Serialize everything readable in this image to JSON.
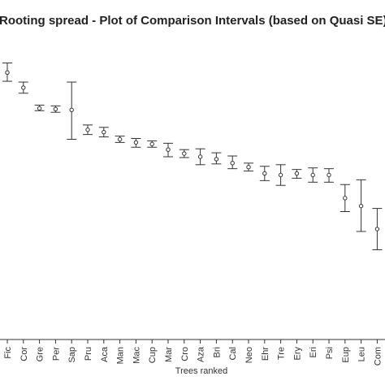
{
  "chart_data": {
    "type": "scatter",
    "title": "Rooting spread - Plot of Comparison Intervals (based on Quasi SE)",
    "xlabel": "Trees ranked",
    "ylabel": "",
    "categories": [
      "Fic",
      "Cor",
      "Gre",
      "Per",
      "Sap",
      "Pru",
      "Aca",
      "Man",
      "Mac",
      "Cup",
      "Mar",
      "Cro",
      "Aza",
      "Bri",
      "Cal",
      "Neo",
      "Ehr",
      "Tre",
      "Ery",
      "Eri",
      "Psi",
      "Eup",
      "Leu",
      "Com"
    ],
    "series": [
      {
        "estimate": [
          88,
          69,
          43,
          42,
          41,
          16,
          13,
          4,
          0,
          -2,
          -9,
          -14,
          -18,
          -21,
          -26,
          -31,
          -39,
          -41,
          -39,
          -41,
          -41,
          -70,
          -80,
          -109
        ],
        "lower": [
          77,
          62,
          40,
          38,
          4,
          10,
          7,
          0,
          -6,
          -6,
          -18,
          -19,
          -28,
          -27,
          -33,
          -36,
          -48,
          -54,
          -45,
          -50,
          -50,
          -87,
          -112,
          -135
        ],
        "upper": [
          100,
          76,
          47,
          46,
          76,
          22,
          19,
          8,
          5,
          2,
          -1,
          -9,
          -8,
          -13,
          -17,
          -26,
          -30,
          -28,
          -34,
          -32,
          -33,
          -53,
          -47,
          -83
        ]
      }
    ],
    "ylim": [
      -248,
      120
    ]
  }
}
